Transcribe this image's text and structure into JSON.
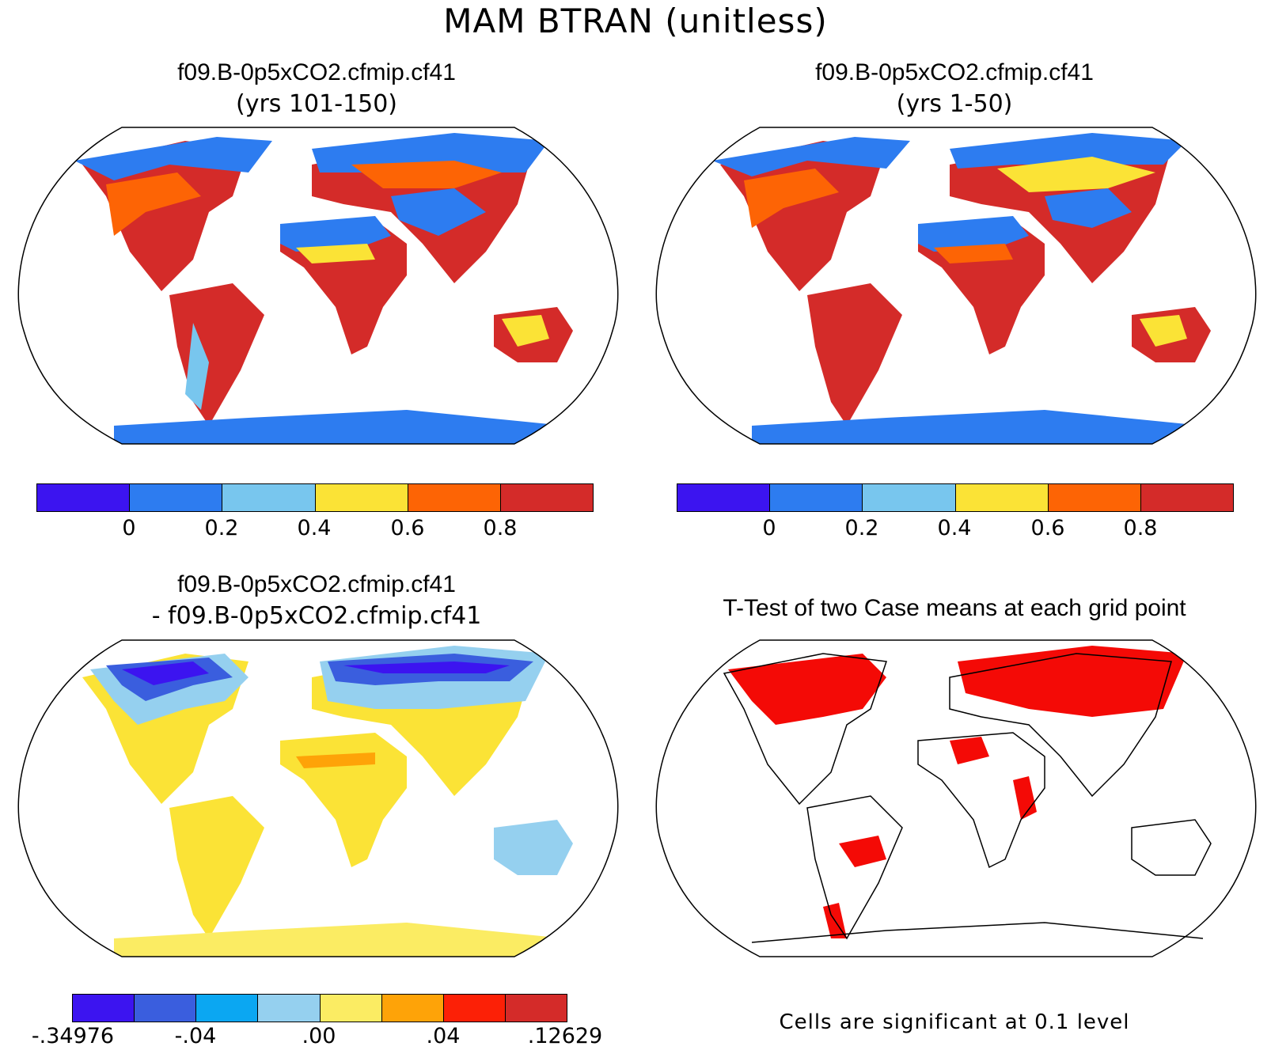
{
  "title": "MAM BTRAN (unitless)",
  "panels": {
    "top_left": {
      "title": "f09.B-0p5xCO2.cfmip.cf41",
      "subtitle": "(yrs 101-150)"
    },
    "top_right": {
      "title": "f09.B-0p5xCO2.cfmip.cf41",
      "subtitle": "(yrs 1-50)"
    },
    "bottom_left": {
      "title": "f09.B-0p5xCO2.cfmip.cf41",
      "subtitle": "- f09.B-0p5xCO2.cfmip.cf41"
    },
    "bottom_right": {
      "title": "T-Test of two Case means at each grid point",
      "note": "Cells are significant at 0.1 level"
    }
  },
  "colorbar_abs": {
    "colors": [
      "#3c14f0",
      "#2d7cf0",
      "#78c6ee",
      "#fbe336",
      "#fd6405",
      "#d42b29"
    ],
    "ticks": [
      "0",
      "0.2",
      "0.4",
      "0.6",
      "0.8"
    ]
  },
  "colorbar_diff": {
    "colors": [
      "#3c14f0",
      "#3a5ede",
      "#0ba7f2",
      "#95d0ef",
      "#fbec63",
      "#fea308",
      "#fc2006",
      "#d42b29"
    ],
    "ticks": [
      ".34976",
      "-.04",
      ".00",
      ".04",
      ".12629"
    ],
    "tick_prefix_first": "-"
  },
  "colors": {
    "land_wet": "#d42b29",
    "land_mid": "#fd6405",
    "land_dry": "#2d7cf0",
    "sig": "#f40a06",
    "diff_base": "#fbe336"
  }
}
